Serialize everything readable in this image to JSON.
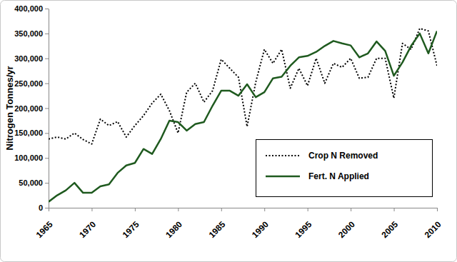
{
  "chart_data": {
    "type": "line",
    "y_label": "Nitrogen Tonnes/yr",
    "x": [
      1965,
      1966,
      1967,
      1968,
      1969,
      1970,
      1971,
      1972,
      1973,
      1974,
      1975,
      1976,
      1977,
      1978,
      1979,
      1980,
      1981,
      1982,
      1983,
      1984,
      1985,
      1986,
      1987,
      1988,
      1989,
      1990,
      1991,
      1992,
      1993,
      1994,
      1995,
      1996,
      1997,
      1998,
      1999,
      2000,
      2001,
      2002,
      2003,
      2004,
      2005,
      2006,
      2007,
      2008,
      2009,
      2010
    ],
    "series": [
      {
        "name": "Crop N Removed",
        "color": "#000000",
        "line_style": "dotted",
        "values": [
          138000,
          142000,
          138000,
          150000,
          137000,
          128000,
          178000,
          165000,
          173000,
          142000,
          165000,
          185000,
          210000,
          228000,
          195000,
          150000,
          232000,
          250000,
          212000,
          235000,
          298000,
          280000,
          262000,
          163000,
          252000,
          318000,
          290000,
          318000,
          240000,
          280000,
          245000,
          300000,
          250000,
          290000,
          282000,
          300000,
          260000,
          262000,
          300000,
          300000,
          220000,
          330000,
          318000,
          360000,
          355000,
          285000
        ]
      },
      {
        "name": "Fert. N Applied",
        "color": "#1f5a1f",
        "line_style": "solid",
        "values": [
          12000,
          25000,
          35000,
          50000,
          30000,
          30000,
          43000,
          47000,
          70000,
          85000,
          90000,
          118000,
          108000,
          138000,
          175000,
          172000,
          155000,
          168000,
          172000,
          205000,
          235000,
          235000,
          225000,
          248000,
          222000,
          232000,
          260000,
          263000,
          285000,
          302000,
          305000,
          313000,
          325000,
          335000,
          330000,
          326000,
          302000,
          310000,
          334000,
          315000,
          265000,
          292000,
          325000,
          350000,
          310000,
          355000
        ]
      }
    ],
    "xlim": [
      1965,
      2010
    ],
    "xticks": [
      1965,
      1970,
      1975,
      1980,
      1985,
      1990,
      1995,
      2000,
      2005,
      2010
    ],
    "ylim": [
      0,
      400000
    ],
    "yticks": [
      0,
      {
        "value": 50000,
        "label": "50,000"
      },
      {
        "value": 100000,
        "label": "100,000"
      },
      {
        "value": 150000,
        "label": "150,000"
      },
      {
        "value": 200000,
        "label": "200,000"
      },
      {
        "value": 250000,
        "label": "250,000"
      },
      {
        "value": 300000,
        "label": "300,000"
      },
      {
        "value": 350000,
        "label": "350,000"
      },
      {
        "value": 400000,
        "label": "400,000"
      }
    ],
    "grid": false,
    "legend": "lower right"
  }
}
